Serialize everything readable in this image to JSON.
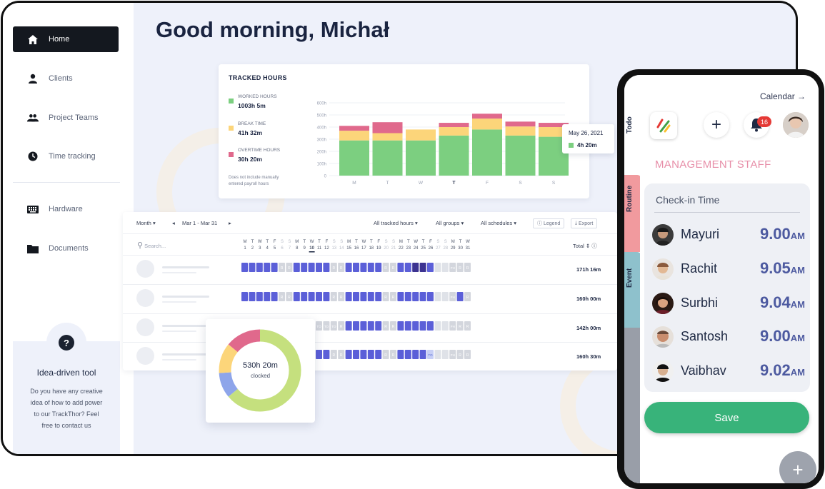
{
  "greeting": "Good morning, Michał",
  "sidebar": {
    "items": [
      {
        "label": "Home",
        "icon": "home-icon"
      },
      {
        "label": "Clients",
        "icon": "user-icon"
      },
      {
        "label": "Project Teams",
        "icon": "team-icon"
      },
      {
        "label": "Time tracking",
        "icon": "clock-icon"
      },
      {
        "label": "Hardware",
        "icon": "keyboard-icon"
      },
      {
        "label": "Documents",
        "icon": "folder-icon"
      }
    ],
    "promo": {
      "title": "Idea-driven tool",
      "text": "Do you have any creative idea of how to add power to our TrackThor? Feel free to contact us",
      "icon": "question-icon"
    }
  },
  "tracked": {
    "title": "TRACKED HOURS",
    "legend": [
      {
        "label": "WORKED HOURS",
        "value": "1003h 5m",
        "color": "#7ccf80"
      },
      {
        "label": "BREAK TIME",
        "value": "41h 32m",
        "color": "#fcd57a"
      },
      {
        "label": "OVERTIME HOURS",
        "value": "30h 20m",
        "color": "#e0698c"
      }
    ],
    "note": "Does not include manually entered payroll hours",
    "tooltip": {
      "date": "May 26, 2021",
      "value": "4h 20m"
    }
  },
  "chart_data": {
    "type": "bar",
    "stacked": true,
    "categories": [
      "M",
      "T",
      "W",
      "T",
      "F",
      "S",
      "S"
    ],
    "series": [
      {
        "name": "WORKED HOURS",
        "values": [
          290,
          290,
          290,
          330,
          380,
          330,
          320
        ]
      },
      {
        "name": "BREAK TIME",
        "values": [
          80,
          60,
          90,
          70,
          90,
          75,
          80
        ]
      },
      {
        "name": "OVERTIME HOURS",
        "values": [
          40,
          90,
          0,
          35,
          40,
          40,
          35
        ]
      }
    ],
    "yticks": [
      "0",
      "100h",
      "200h",
      "300h",
      "400h",
      "500h",
      "600h"
    ],
    "ylim": [
      0,
      600
    ],
    "highlight_category_index": 3,
    "colors": [
      "#7ccf80",
      "#fcd57a",
      "#e0698c"
    ]
  },
  "schedule": {
    "period": "Month",
    "range": "Mar 1  - Mar 31",
    "filters": [
      "All tracked hours",
      "All groups",
      "All schedules"
    ],
    "legend_btn": "Legend",
    "export_btn": "Export",
    "search_placeholder": "Search...",
    "total_label": "Total",
    "weekdays": [
      "M",
      "T",
      "W",
      "T",
      "F",
      "S",
      "S",
      "M",
      "T",
      "W",
      "T",
      "F",
      "S",
      "S",
      "M",
      "T",
      "W",
      "T",
      "F",
      "S",
      "S",
      "M",
      "T",
      "W",
      "T",
      "F",
      "S",
      "S",
      "M",
      "T",
      "W"
    ],
    "days": [
      "1",
      "2",
      "3",
      "4",
      "5",
      "6",
      "7",
      "8",
      "9",
      "10",
      "11",
      "12",
      "13",
      "14",
      "15",
      "16",
      "17",
      "18",
      "19",
      "20",
      "21",
      "22",
      "23",
      "24",
      "25",
      "26",
      "27",
      "28",
      "29",
      "30",
      "31"
    ],
    "rows": [
      {
        "total": "171h 16m",
        "cells": [
          "w",
          "w",
          "w",
          "w",
          "w",
          "R",
          "R",
          "w",
          "w",
          "w",
          "w",
          "w",
          "R",
          "R",
          "w",
          "w",
          "w",
          "w",
          "w",
          "R",
          "R",
          "w",
          "w",
          "d",
          "d",
          "w",
          "e",
          "e",
          "PH",
          "R",
          "R"
        ]
      },
      {
        "total": "160h 00m",
        "cells": [
          "w",
          "w",
          "w",
          "w",
          "w",
          "R",
          "R",
          "w",
          "w",
          "w",
          "w",
          "w",
          "R",
          "R",
          "w",
          "w",
          "w",
          "w",
          "w",
          "R",
          "R",
          "w",
          "w",
          "w",
          "w",
          "w",
          "e",
          "e",
          "PH",
          "w",
          "R"
        ]
      },
      {
        "total": "142h 00m",
        "cells": [
          "w",
          "w",
          "w",
          "w",
          "w",
          "R",
          "R",
          "w",
          "w",
          "TO",
          "TO",
          "TO",
          "TO",
          "R",
          "w",
          "w",
          "w",
          "w",
          "w",
          "R",
          "R",
          "w",
          "w",
          "w",
          "w",
          "w",
          "e",
          "e",
          "PH",
          "R",
          "R"
        ]
      },
      {
        "total": "160h 30m",
        "cells": [
          "w",
          "w",
          "w",
          "w",
          "w",
          "R",
          "R",
          "w",
          "w",
          "w",
          "w",
          "w",
          "R",
          "R",
          "w",
          "w",
          "w",
          "w",
          "w",
          "R",
          "R",
          "w",
          "w",
          "w",
          "w",
          "TO",
          "e",
          "e",
          "PH",
          "R",
          "R"
        ]
      }
    ]
  },
  "donut": {
    "value": "530h 20m",
    "label": "clocked",
    "segments": [
      {
        "share": 0.64,
        "color": "#c5e07e"
      },
      {
        "share": 0.1,
        "color": "#8ea5ea"
      },
      {
        "share": 0.12,
        "color": "#fcd57a"
      },
      {
        "share": 0.14,
        "color": "#e0698c"
      }
    ]
  },
  "phone": {
    "calendar": "Calendar",
    "tabs": [
      "Todo",
      "Routine",
      "Event"
    ],
    "notifications": "16",
    "section_title": "MANAGEMENT STAFF",
    "checkin_title": "Check-in Time",
    "employees": [
      {
        "name": "Mayuri",
        "time": "9.00",
        "ampm": "AM"
      },
      {
        "name": "Rachit",
        "time": "9.05",
        "ampm": "AM"
      },
      {
        "name": "Surbhi",
        "time": "9.04",
        "ampm": "AM"
      },
      {
        "name": "Santosh",
        "time": "9.00",
        "ampm": "AM"
      },
      {
        "name": "Vaibhav",
        "time": "9.02",
        "ampm": "AM"
      }
    ],
    "save_label": "Save",
    "fab_label": "+"
  }
}
